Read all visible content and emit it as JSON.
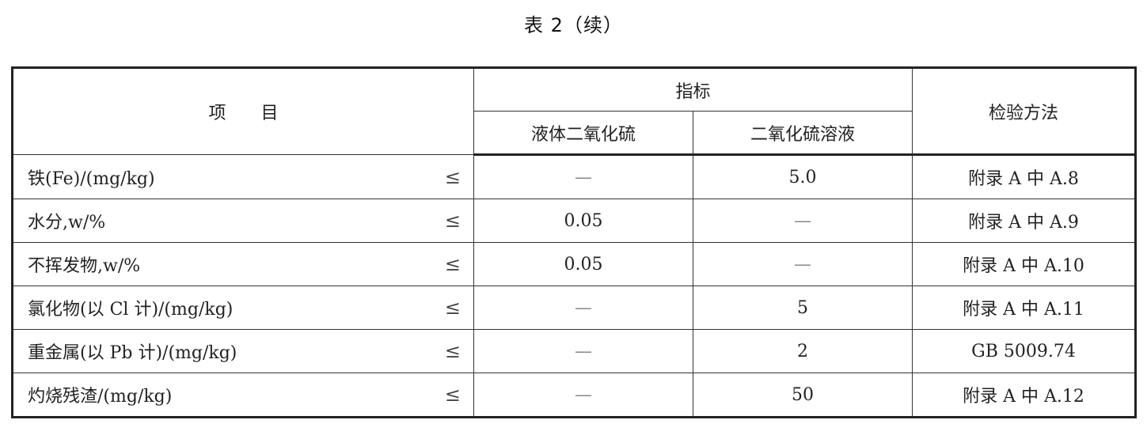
{
  "title": "表 2（续）",
  "header": {
    "item": "项　　目",
    "indicator": "指标",
    "liquid_so2": "液体二氧化硫",
    "so2_solution": "二氧化硫溶液",
    "method": "检验方法"
  },
  "rows": [
    {
      "item": "铁(Fe)/(mg/kg)",
      "op": "≤",
      "liquid": "—",
      "solution": "5.0",
      "method": "附录 A 中 A.8"
    },
    {
      "item": "水分,w/%",
      "op": "≤",
      "liquid": "0.05",
      "solution": "—",
      "method": "附录 A 中 A.9"
    },
    {
      "item": "不挥发物,w/%",
      "op": "≤",
      "liquid": "0.05",
      "solution": "—",
      "method": "附录 A 中 A.10"
    },
    {
      "item": "氯化物(以 Cl 计)/(mg/kg)",
      "op": "≤",
      "liquid": "—",
      "solution": "5",
      "method": "附录 A 中 A.11"
    },
    {
      "item": "重金属(以 Pb 计)/(mg/kg)",
      "op": "≤",
      "liquid": "—",
      "solution": "2",
      "method": "GB 5009.74"
    },
    {
      "item": "灼烧残渣/(mg/kg)",
      "op": "≤",
      "liquid": "—",
      "solution": "50",
      "method": "附录 A 中 A.12"
    }
  ]
}
